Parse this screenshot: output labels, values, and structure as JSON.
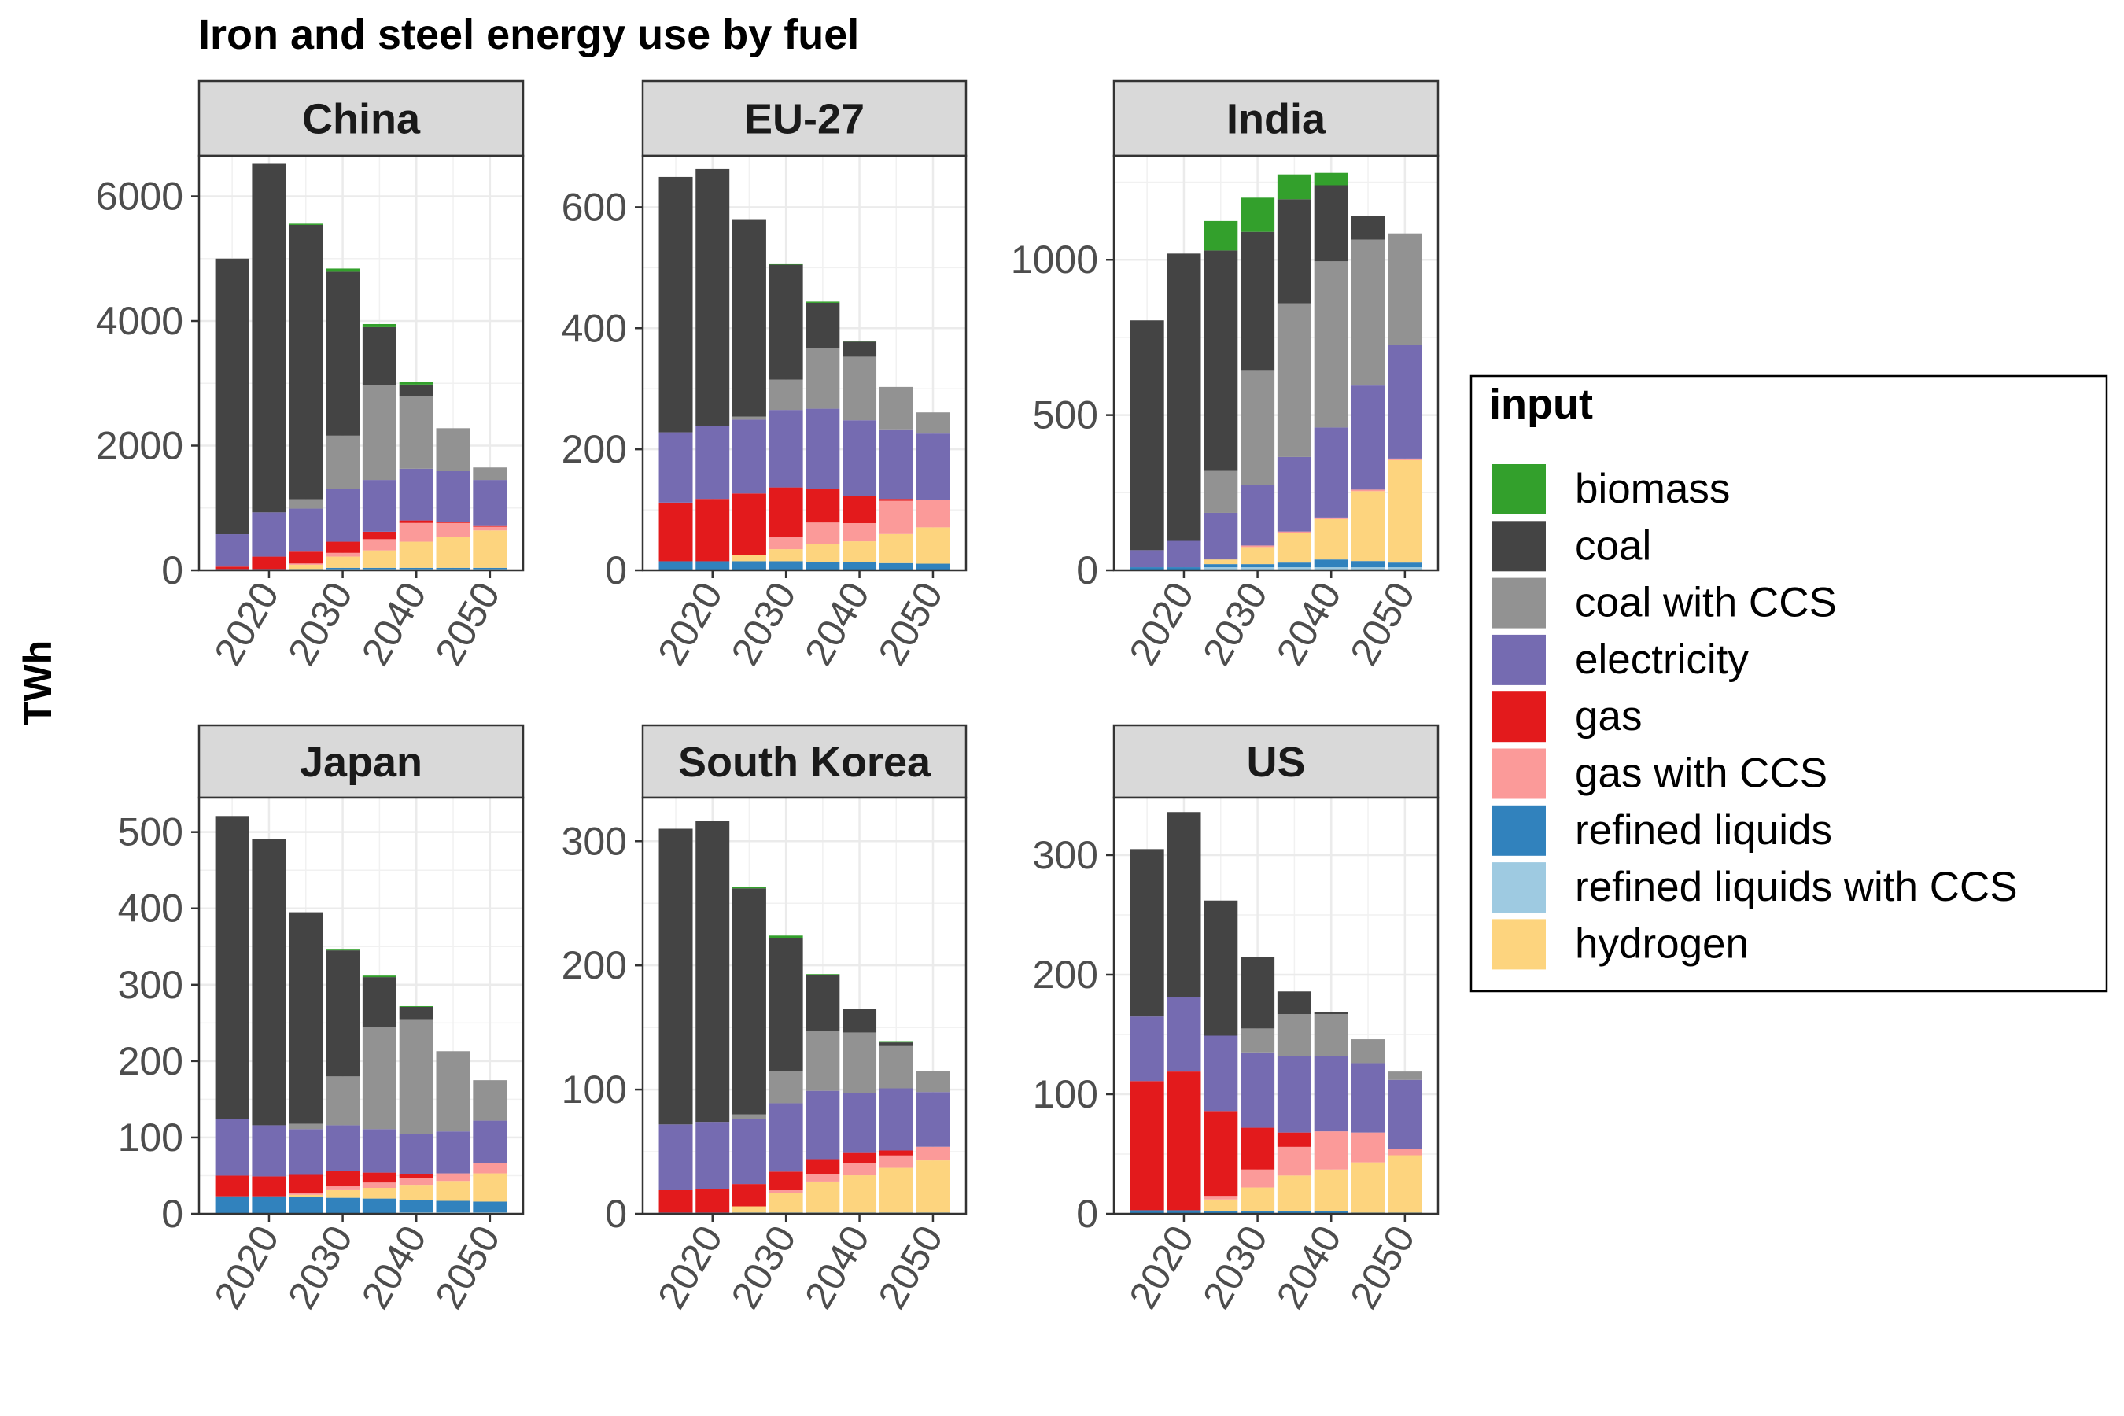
{
  "chart_data": {
    "type": "bar",
    "stacked": true,
    "faceted": true,
    "title": "Iron and steel energy use by fuel",
    "ylabel": "TWh",
    "xlabel": "",
    "grid": true,
    "legend_position": "right",
    "x": [
      2015,
      2020,
      2025,
      2030,
      2035,
      2040,
      2045,
      2050
    ],
    "x_ticks": [
      "2020",
      "2030",
      "2040",
      "2050"
    ],
    "legend": {
      "title": "input",
      "entries": [
        {
          "key": "biomass",
          "label": "biomass",
          "color": "#33a02c"
        },
        {
          "key": "coal",
          "label": "coal",
          "color": "#444444"
        },
        {
          "key": "coal_ccs",
          "label": "coal with CCS",
          "color": "#929292"
        },
        {
          "key": "electricity",
          "label": "electricity",
          "color": "#756bb1"
        },
        {
          "key": "gas",
          "label": "gas",
          "color": "#e31a1c"
        },
        {
          "key": "gas_ccs",
          "label": "gas with CCS",
          "color": "#fb9a99"
        },
        {
          "key": "refined_liquids",
          "label": "refined liquids",
          "color": "#3182bd"
        },
        {
          "key": "refined_liquids_ccs",
          "label": "refined liquids with CCS",
          "color": "#9ecae1"
        },
        {
          "key": "hydrogen",
          "label": "hydrogen",
          "color": "#fdd47e"
        }
      ]
    },
    "stack_order": [
      "refined_liquids_ccs",
      "refined_liquids",
      "hydrogen",
      "gas_ccs",
      "gas",
      "electricity",
      "coal_ccs",
      "coal",
      "biomass"
    ],
    "panels": [
      {
        "title": "China",
        "ylim": [
          0,
          6650
        ],
        "y_ticks": [
          0,
          2000,
          4000,
          6000
        ],
        "series": {
          "refined_liquids": [
            20,
            20,
            20,
            20,
            20,
            20,
            20,
            20
          ],
          "refined_liquids_ccs": [
            0,
            0,
            0,
            20,
            20,
            20,
            20,
            20
          ],
          "hydrogen": [
            0,
            0,
            70,
            180,
            280,
            420,
            500,
            600
          ],
          "gas_ccs": [
            0,
            0,
            20,
            60,
            180,
            300,
            220,
            60
          ],
          "gas": [
            40,
            200,
            190,
            180,
            120,
            40,
            20,
            10
          ],
          "electricity": [
            520,
            710,
            690,
            840,
            830,
            830,
            810,
            740
          ],
          "coal_ccs": [
            0,
            0,
            150,
            860,
            1520,
            1170,
            690,
            200
          ],
          "coal": [
            4420,
            5600,
            4400,
            2630,
            930,
            180,
            0,
            0
          ],
          "biomass": [
            0,
            0,
            20,
            50,
            50,
            40,
            0,
            0
          ]
        }
      },
      {
        "title": "EU-27",
        "ylim": [
          0,
          685
        ],
        "y_ticks": [
          0,
          200,
          400,
          600
        ],
        "series": {
          "refined_liquids": [
            15,
            15,
            15,
            14,
            13,
            12,
            11,
            10
          ],
          "refined_liquids_ccs": [
            0,
            0,
            0,
            1,
            1,
            1,
            1,
            1
          ],
          "hydrogen": [
            0,
            0,
            10,
            20,
            30,
            35,
            48,
            60
          ],
          "gas_ccs": [
            0,
            0,
            0,
            20,
            35,
            30,
            55,
            45
          ],
          "gas": [
            97,
            103,
            102,
            82,
            56,
            45,
            3,
            0
          ],
          "electricity": [
            116,
            120,
            122,
            128,
            132,
            125,
            115,
            110
          ],
          "coal_ccs": [
            0,
            0,
            5,
            50,
            100,
            105,
            70,
            35
          ],
          "coal": [
            422,
            425,
            325,
            190,
            75,
            25,
            0,
            0
          ],
          "biomass": [
            0,
            0,
            0,
            2,
            2,
            1,
            0,
            0
          ]
        }
      },
      {
        "title": "India",
        "ylim": [
          0,
          1335
        ],
        "y_ticks": [
          0,
          500,
          1000
        ],
        "series": {
          "refined_liquids": [
            10,
            10,
            10,
            10,
            15,
            25,
            20,
            15
          ],
          "refined_liquids_ccs": [
            0,
            0,
            10,
            10,
            10,
            10,
            10,
            10
          ],
          "hydrogen": [
            0,
            0,
            15,
            55,
            95,
            130,
            225,
            330
          ],
          "gas_ccs": [
            0,
            0,
            0,
            5,
            5,
            5,
            5,
            5
          ],
          "gas": [
            0,
            0,
            0,
            0,
            0,
            0,
            0,
            0
          ],
          "electricity": [
            55,
            85,
            150,
            195,
            240,
            290,
            335,
            365
          ],
          "coal_ccs": [
            0,
            0,
            135,
            370,
            495,
            535,
            470,
            360
          ],
          "coal": [
            740,
            925,
            710,
            445,
            335,
            245,
            75,
            0
          ],
          "biomass": [
            0,
            0,
            95,
            110,
            80,
            40,
            0,
            0
          ]
        }
      },
      {
        "title": "Japan",
        "ylim": [
          0,
          545
        ],
        "y_ticks": [
          0,
          100,
          200,
          300,
          400,
          500
        ],
        "series": {
          "refined_liquids": [
            23,
            23,
            22,
            20,
            19,
            16,
            15,
            14
          ],
          "refined_liquids_ccs": [
            0,
            0,
            0,
            1,
            1,
            2,
            2,
            2
          ],
          "hydrogen": [
            0,
            0,
            3,
            10,
            14,
            20,
            26,
            37
          ],
          "gas_ccs": [
            0,
            0,
            2,
            5,
            7,
            9,
            10,
            13
          ],
          "gas": [
            27,
            26,
            24,
            20,
            13,
            5,
            0,
            0
          ],
          "electricity": [
            74,
            67,
            60,
            60,
            57,
            53,
            55,
            56
          ],
          "coal_ccs": [
            0,
            0,
            7,
            64,
            134,
            150,
            105,
            53
          ],
          "coal": [
            397,
            375,
            277,
            165,
            65,
            16,
            0,
            0
          ],
          "biomass": [
            0,
            0,
            0,
            2,
            2,
            1,
            0,
            0
          ]
        }
      },
      {
        "title": "South Korea",
        "ylim": [
          0,
          335
        ],
        "y_ticks": [
          0,
          100,
          200,
          300
        ],
        "series": {
          "refined_liquids": [
            1,
            1,
            1,
            1,
            1,
            1,
            1,
            1
          ],
          "refined_liquids_ccs": [
            0,
            0,
            0,
            0,
            0,
            0,
            0,
            0
          ],
          "hydrogen": [
            0,
            0,
            5,
            16,
            25,
            30,
            36,
            42
          ],
          "gas_ccs": [
            0,
            0,
            0,
            2,
            6,
            10,
            10,
            11
          ],
          "gas": [
            18,
            19,
            18,
            15,
            12,
            8,
            4,
            0
          ],
          "electricity": [
            53,
            54,
            52,
            55,
            55,
            48,
            50,
            44
          ],
          "coal_ccs": [
            0,
            0,
            4,
            26,
            48,
            49,
            34,
            17
          ],
          "coal": [
            238,
            242,
            182,
            107,
            45,
            19,
            3,
            0
          ],
          "biomass": [
            0,
            0,
            1,
            2,
            1,
            0,
            1,
            0
          ]
        }
      },
      {
        "title": "US",
        "ylim": [
          0,
          348
        ],
        "y_ticks": [
          0,
          100,
          200,
          300
        ],
        "series": {
          "refined_liquids": [
            3,
            3,
            2,
            2,
            2,
            2,
            1,
            1
          ],
          "refined_liquids_ccs": [
            0,
            0,
            0,
            0,
            0,
            0,
            0,
            0
          ],
          "hydrogen": [
            0,
            0,
            10,
            20,
            30,
            35,
            42,
            48
          ],
          "gas_ccs": [
            0,
            0,
            3,
            15,
            24,
            32,
            25,
            5
          ],
          "gas": [
            108,
            116,
            71,
            35,
            12,
            0,
            0,
            0
          ],
          "electricity": [
            54,
            62,
            63,
            63,
            64,
            63,
            58,
            58
          ],
          "coal_ccs": [
            0,
            0,
            0,
            20,
            35,
            35,
            20,
            7
          ],
          "coal": [
            140,
            155,
            113,
            60,
            19,
            2,
            0,
            0
          ],
          "biomass": [
            0,
            0,
            0,
            0,
            0,
            0,
            0,
            0
          ]
        }
      }
    ]
  }
}
